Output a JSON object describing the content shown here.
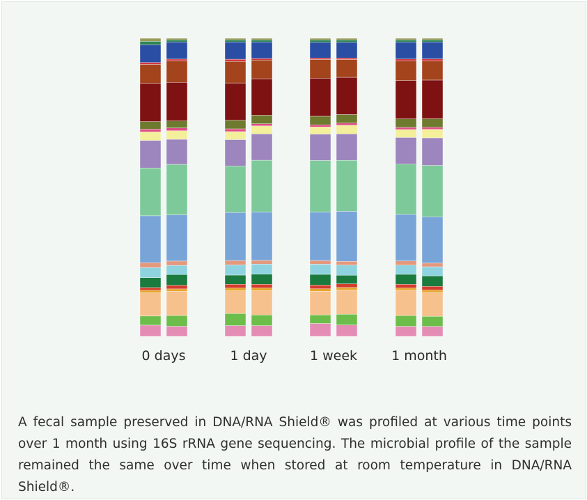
{
  "chart_data": {
    "type": "bar",
    "subtype": "stacked-100-percent",
    "categories": [
      "0 days",
      "1 day",
      "1 week",
      "1 month"
    ],
    "replicates_per_category": 2,
    "y_range": [
      0,
      100
    ],
    "taxon_colors": [
      "#e58cb4",
      "#6dbd4b",
      "#f6c18c",
      "#e7a62b",
      "#d43d2b",
      "#1b7a3e",
      "#8fd3e0",
      "#e4987c",
      "#79a4d8",
      "#7ec99a",
      "#9d85bd",
      "#f3ef9a",
      "#df4d86",
      "#6e7a2e",
      "#7e1212",
      "#a3441c",
      "#d3343c",
      "#2a4ea3",
      "#2f8452",
      "#9a9a5a"
    ],
    "series_note": "each stacked bar: per-taxon relative abundance (%), listed bottom to top in the order of taxon_colors",
    "bars": [
      {
        "category": "0 days",
        "replicate": 1,
        "values": [
          3.7,
          3.0,
          7.7,
          0.8,
          0.9,
          3.3,
          3.3,
          1.6,
          15.5,
          15.8,
          9.1,
          2.8,
          0.9,
          2.5,
          12.6,
          6.3,
          0.6,
          5.9,
          1.1,
          1.0
        ]
      },
      {
        "category": "0 days",
        "replicate": 2,
        "values": [
          3.3,
          3.5,
          7.9,
          0.8,
          1.2,
          3.5,
          3.0,
          1.4,
          15.1,
          16.5,
          8.2,
          2.8,
          0.9,
          2.3,
          12.6,
          7.0,
          0.6,
          5.6,
          0.7,
          0.5
        ]
      },
      {
        "category": "1 day",
        "replicate": 1,
        "values": [
          3.5,
          3.9,
          7.4,
          0.9,
          1.2,
          3.0,
          3.3,
          1.4,
          15.6,
          15.1,
          8.6,
          2.6,
          0.9,
          2.8,
          12.1,
          7.0,
          0.7,
          5.6,
          0.7,
          0.5
        ]
      },
      {
        "category": "1 day",
        "replicate": 2,
        "values": [
          3.5,
          3.5,
          7.9,
          0.9,
          1.2,
          3.3,
          3.3,
          1.2,
          15.8,
          16.9,
          8.6,
          2.6,
          0.7,
          2.8,
          11.9,
          6.1,
          0.5,
          5.4,
          0.7,
          0.5
        ]
      },
      {
        "category": "1 week",
        "replicate": 1,
        "values": [
          4.2,
          2.8,
          7.7,
          0.8,
          1.2,
          3.5,
          3.3,
          1.2,
          15.8,
          16.8,
          8.6,
          2.3,
          0.7,
          2.8,
          12.4,
          6.1,
          0.5,
          5.1,
          0.8,
          0.5
        ]
      },
      {
        "category": "1 week",
        "replicate": 2,
        "values": [
          3.7,
          3.5,
          7.9,
          0.8,
          1.2,
          2.8,
          3.3,
          1.2,
          16.3,
          16.6,
          8.6,
          2.8,
          0.7,
          2.8,
          12.1,
          5.8,
          0.5,
          5.1,
          0.8,
          0.5
        ]
      },
      {
        "category": "1 month",
        "replicate": 1,
        "values": [
          3.3,
          3.5,
          8.4,
          0.7,
          1.2,
          3.3,
          3.0,
          1.4,
          15.3,
          16.5,
          8.8,
          2.6,
          0.7,
          2.8,
          12.6,
          6.5,
          0.6,
          5.6,
          0.7,
          0.5
        ]
      },
      {
        "category": "1 month",
        "replicate": 2,
        "values": [
          3.3,
          3.3,
          7.9,
          0.8,
          1.2,
          3.5,
          3.0,
          1.2,
          15.3,
          17.0,
          9.1,
          2.8,
          0.7,
          2.8,
          12.8,
          6.3,
          0.7,
          5.6,
          0.7,
          0.5
        ]
      }
    ]
  },
  "caption": "A fecal sample preserved in DNA/RNA Shield® was profiled at various time points over 1 month using 16S rRNA gene sequencing. The microbial profile of the sample remained the same over time when stored at room temperature in DNA/RNA Shield®."
}
